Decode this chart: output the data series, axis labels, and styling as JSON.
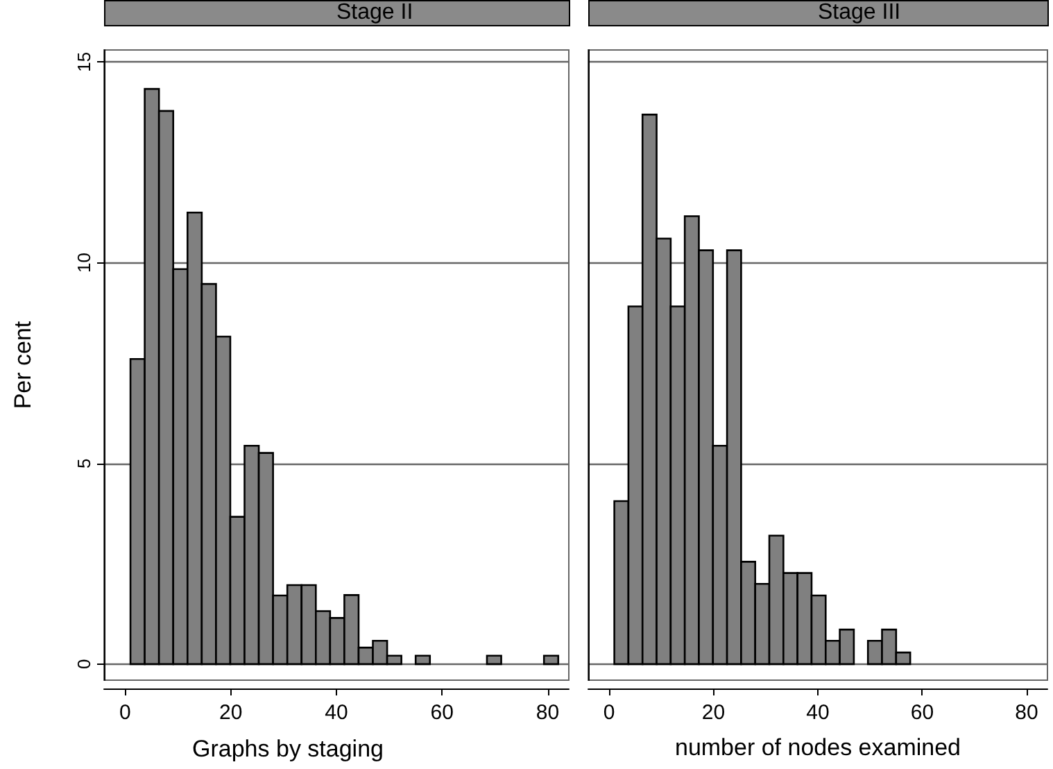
{
  "chart_data": [
    {
      "type": "histogram",
      "title": "Stage II",
      "ylabel": "Per cent",
      "annotations": [
        "Graphs by staging"
      ],
      "bins": [
        1,
        3.7,
        6.4,
        9.1,
        11.8,
        14.5,
        17.2,
        19.9,
        22.6,
        25.3,
        28,
        30.7,
        33.4,
        36.1,
        38.8,
        41.5,
        44.2,
        46.9,
        49.6,
        52.3,
        55,
        57.7,
        60.4,
        63.1,
        65.8,
        68.5,
        71.2,
        73.9,
        76.6,
        79.3,
        82
      ],
      "values": [
        7.6,
        14.33,
        13.78,
        9.84,
        11.25,
        9.47,
        8.16,
        3.67,
        5.44,
        5.26,
        1.71,
        1.97,
        1.97,
        1.32,
        1.15,
        1.72,
        0.41,
        0.58,
        0.21,
        0,
        0.21,
        0,
        0,
        0,
        0,
        0.21,
        0,
        0,
        0,
        0.21
      ],
      "color": "#808080",
      "xlim": [
        -4,
        84
      ],
      "xticks": [
        0,
        20,
        40,
        60,
        80
      ],
      "ylim": [
        -0.4,
        15.3
      ],
      "yticks": [
        0,
        5,
        10,
        15
      ],
      "grid": "y"
    },
    {
      "type": "histogram",
      "title": "Stage III",
      "xlabel": "number of nodes examined",
      "bins": [
        1,
        3.7,
        6.4,
        9.1,
        11.8,
        14.5,
        17.2,
        19.9,
        22.6,
        25.3,
        28,
        30.7,
        33.4,
        36.1,
        38.8,
        41.5,
        44.2,
        46.9,
        49.6,
        52.3,
        55,
        57.7
      ],
      "values": [
        4.06,
        8.91,
        13.69,
        10.6,
        8.91,
        11.16,
        10.31,
        5.44,
        10.31,
        2.55,
        2.0,
        3.2,
        2.27,
        2.27,
        1.71,
        0.58,
        0.86,
        0,
        0.58,
        0.86,
        0.29
      ],
      "color": "#808080",
      "xlim": [
        -4,
        84
      ],
      "xticks": [
        0,
        20,
        40,
        60,
        80
      ],
      "ylim": [
        -0.4,
        15.3
      ],
      "yticks": [
        0,
        5,
        10,
        15
      ],
      "grid": "y",
      "tick_labels": "x"
    }
  ]
}
